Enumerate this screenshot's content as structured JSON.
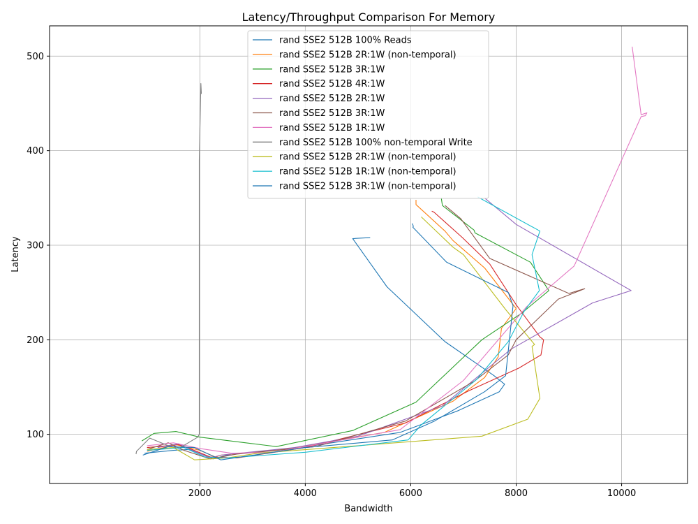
{
  "chart_data": {
    "type": "line",
    "title": "Latency/Throughput Comparison For Memory",
    "xlabel": "Bandwidth",
    "ylabel": "Latency",
    "xlim": [
      -850,
      11250
    ],
    "ylim": [
      48,
      532
    ],
    "xticks": [
      2000,
      4000,
      6000,
      8000,
      10000
    ],
    "yticks": [
      100,
      200,
      300,
      400,
      500
    ],
    "grid": true,
    "legend_position": "top-center",
    "series": [
      {
        "name": "rand SSE2 512B 100% Reads",
        "color": "#1f77b4",
        "x": [
          5230,
          4900,
          5550,
          6650,
          7580,
          7780,
          7680,
          6900,
          5800,
          3800,
          2600,
          2250,
          1800,
          1500,
          950
        ],
        "y": [
          308,
          307,
          256,
          198,
          162,
          153,
          145,
          125,
          102,
          85,
          79,
          74,
          84,
          83,
          80
        ]
      },
      {
        "name": "rand SSE2 512B 2R:1W (non-temporal)",
        "color": "#ff7f0e",
        "x": [
          6100,
          6100,
          6650,
          6800,
          7400,
          8000,
          7720,
          7660,
          7400,
          6800,
          5500,
          3600,
          2400,
          2300,
          2000,
          1550,
          1000
        ],
        "y": [
          348,
          343,
          315,
          305,
          276,
          233,
          212,
          182,
          160,
          135,
          102,
          84,
          78,
          76,
          83,
          89,
          82
        ]
      },
      {
        "name": "rand SSE2 512B 3R:1W",
        "color": "#2ca02c",
        "x": [
          6580,
          6600,
          7200,
          7220,
          8270,
          8620,
          8100,
          7350,
          6100,
          4900,
          3450,
          2000,
          1550,
          1130,
          900
        ],
        "y": [
          350,
          342,
          316,
          313,
          282,
          252,
          228,
          200,
          134,
          104,
          87,
          97,
          103,
          101,
          93
        ]
      },
      {
        "name": "rand SSE2 512B 4R:1W",
        "color": "#d62728",
        "x": [
          6400,
          6440,
          6980,
          7500,
          8000,
          8450,
          8520,
          8470,
          8050,
          7100,
          5900,
          4000,
          2700,
          2200,
          1850,
          1600,
          1000
        ],
        "y": [
          336,
          335,
          308,
          280,
          237,
          203,
          200,
          184,
          170,
          146,
          112,
          86,
          75,
          76,
          84,
          89,
          86
        ]
      },
      {
        "name": "rand SSE2 512B 2R:1W",
        "color": "#9467bd",
        "x": [
          7400,
          8000,
          10180,
          9450,
          7900,
          6600,
          5000,
          3800,
          2400,
          2200,
          1900,
          1600,
          1200
        ],
        "y": [
          350,
          322,
          252,
          239,
          190,
          130,
          98,
          86,
          78,
          75,
          82,
          90,
          86
        ]
      },
      {
        "name": "rand SSE2 512B 3R:1W",
        "color": "#8c564b",
        "x": [
          6650,
          6950,
          7500,
          9000,
          9300,
          8800,
          8000,
          7850,
          7200,
          5900,
          4200,
          2700,
          2200,
          1700,
          1400,
          1000
        ],
        "y": [
          342,
          328,
          286,
          249,
          254,
          243,
          200,
          184,
          156,
          114,
          87,
          79,
          74,
          83,
          91,
          84
        ]
      },
      {
        "name": "rand SSE2 512B 1R:1W",
        "color": "#e377c2",
        "x": [
          10200,
          10370,
          10480,
          10450,
          10370,
          9100,
          8200,
          7000,
          5800,
          3400,
          2600,
          2000,
          1500,
          1000
        ],
        "y": [
          510,
          438,
          440,
          437,
          436,
          278,
          235,
          157,
          105,
          81,
          80,
          85,
          91,
          88
        ]
      },
      {
        "name": "rand SSE2 512B 100% non-temporal Write",
        "color": "#7f7f7f",
        "x": [
          2030,
          2020,
          1990,
          1990,
          1960,
          1600,
          1400,
          1050,
          800,
          790
        ],
        "y": [
          460,
          471,
          390,
          100,
          97,
          85,
          88,
          96,
          82,
          79
        ]
      },
      {
        "name": "rand SSE2 512B 2R:1W (non-temporal)",
        "color": "#bcbd22",
        "x": [
          6200,
          6800,
          7000,
          7800,
          8350,
          8300,
          8450,
          8220,
          7350,
          5000,
          3100,
          2500,
          1900,
          1500,
          1000
        ],
        "y": [
          330,
          298,
          290,
          232,
          195,
          193,
          138,
          116,
          98,
          88,
          80,
          75,
          73,
          86,
          84
        ]
      },
      {
        "name": "rand SSE2 512B 1R:1W (non-temporal)",
        "color": "#17becf",
        "x": [
          7270,
          8450,
          8300,
          8440,
          8150,
          7850,
          7250,
          6200,
          5950,
          4000,
          2500,
          2100,
          1700,
          1000
        ],
        "y": [
          351,
          315,
          290,
          252,
          230,
          198,
          158,
          110,
          94,
          81,
          75,
          76,
          86,
          83
        ]
      },
      {
        "name": "rand SSE2 512B 3R:1W (non-temporal)",
        "color": "#1f77b4",
        "x": [
          6030,
          6050,
          6040,
          6680,
          7850,
          7940,
          7800,
          7400,
          6450,
          5650,
          4000,
          2400,
          1900,
          1400,
          920
        ],
        "y": [
          323,
          320,
          319,
          282,
          250,
          236,
          162,
          145,
          114,
          94,
          86,
          73,
          86,
          87,
          78
        ]
      }
    ]
  }
}
